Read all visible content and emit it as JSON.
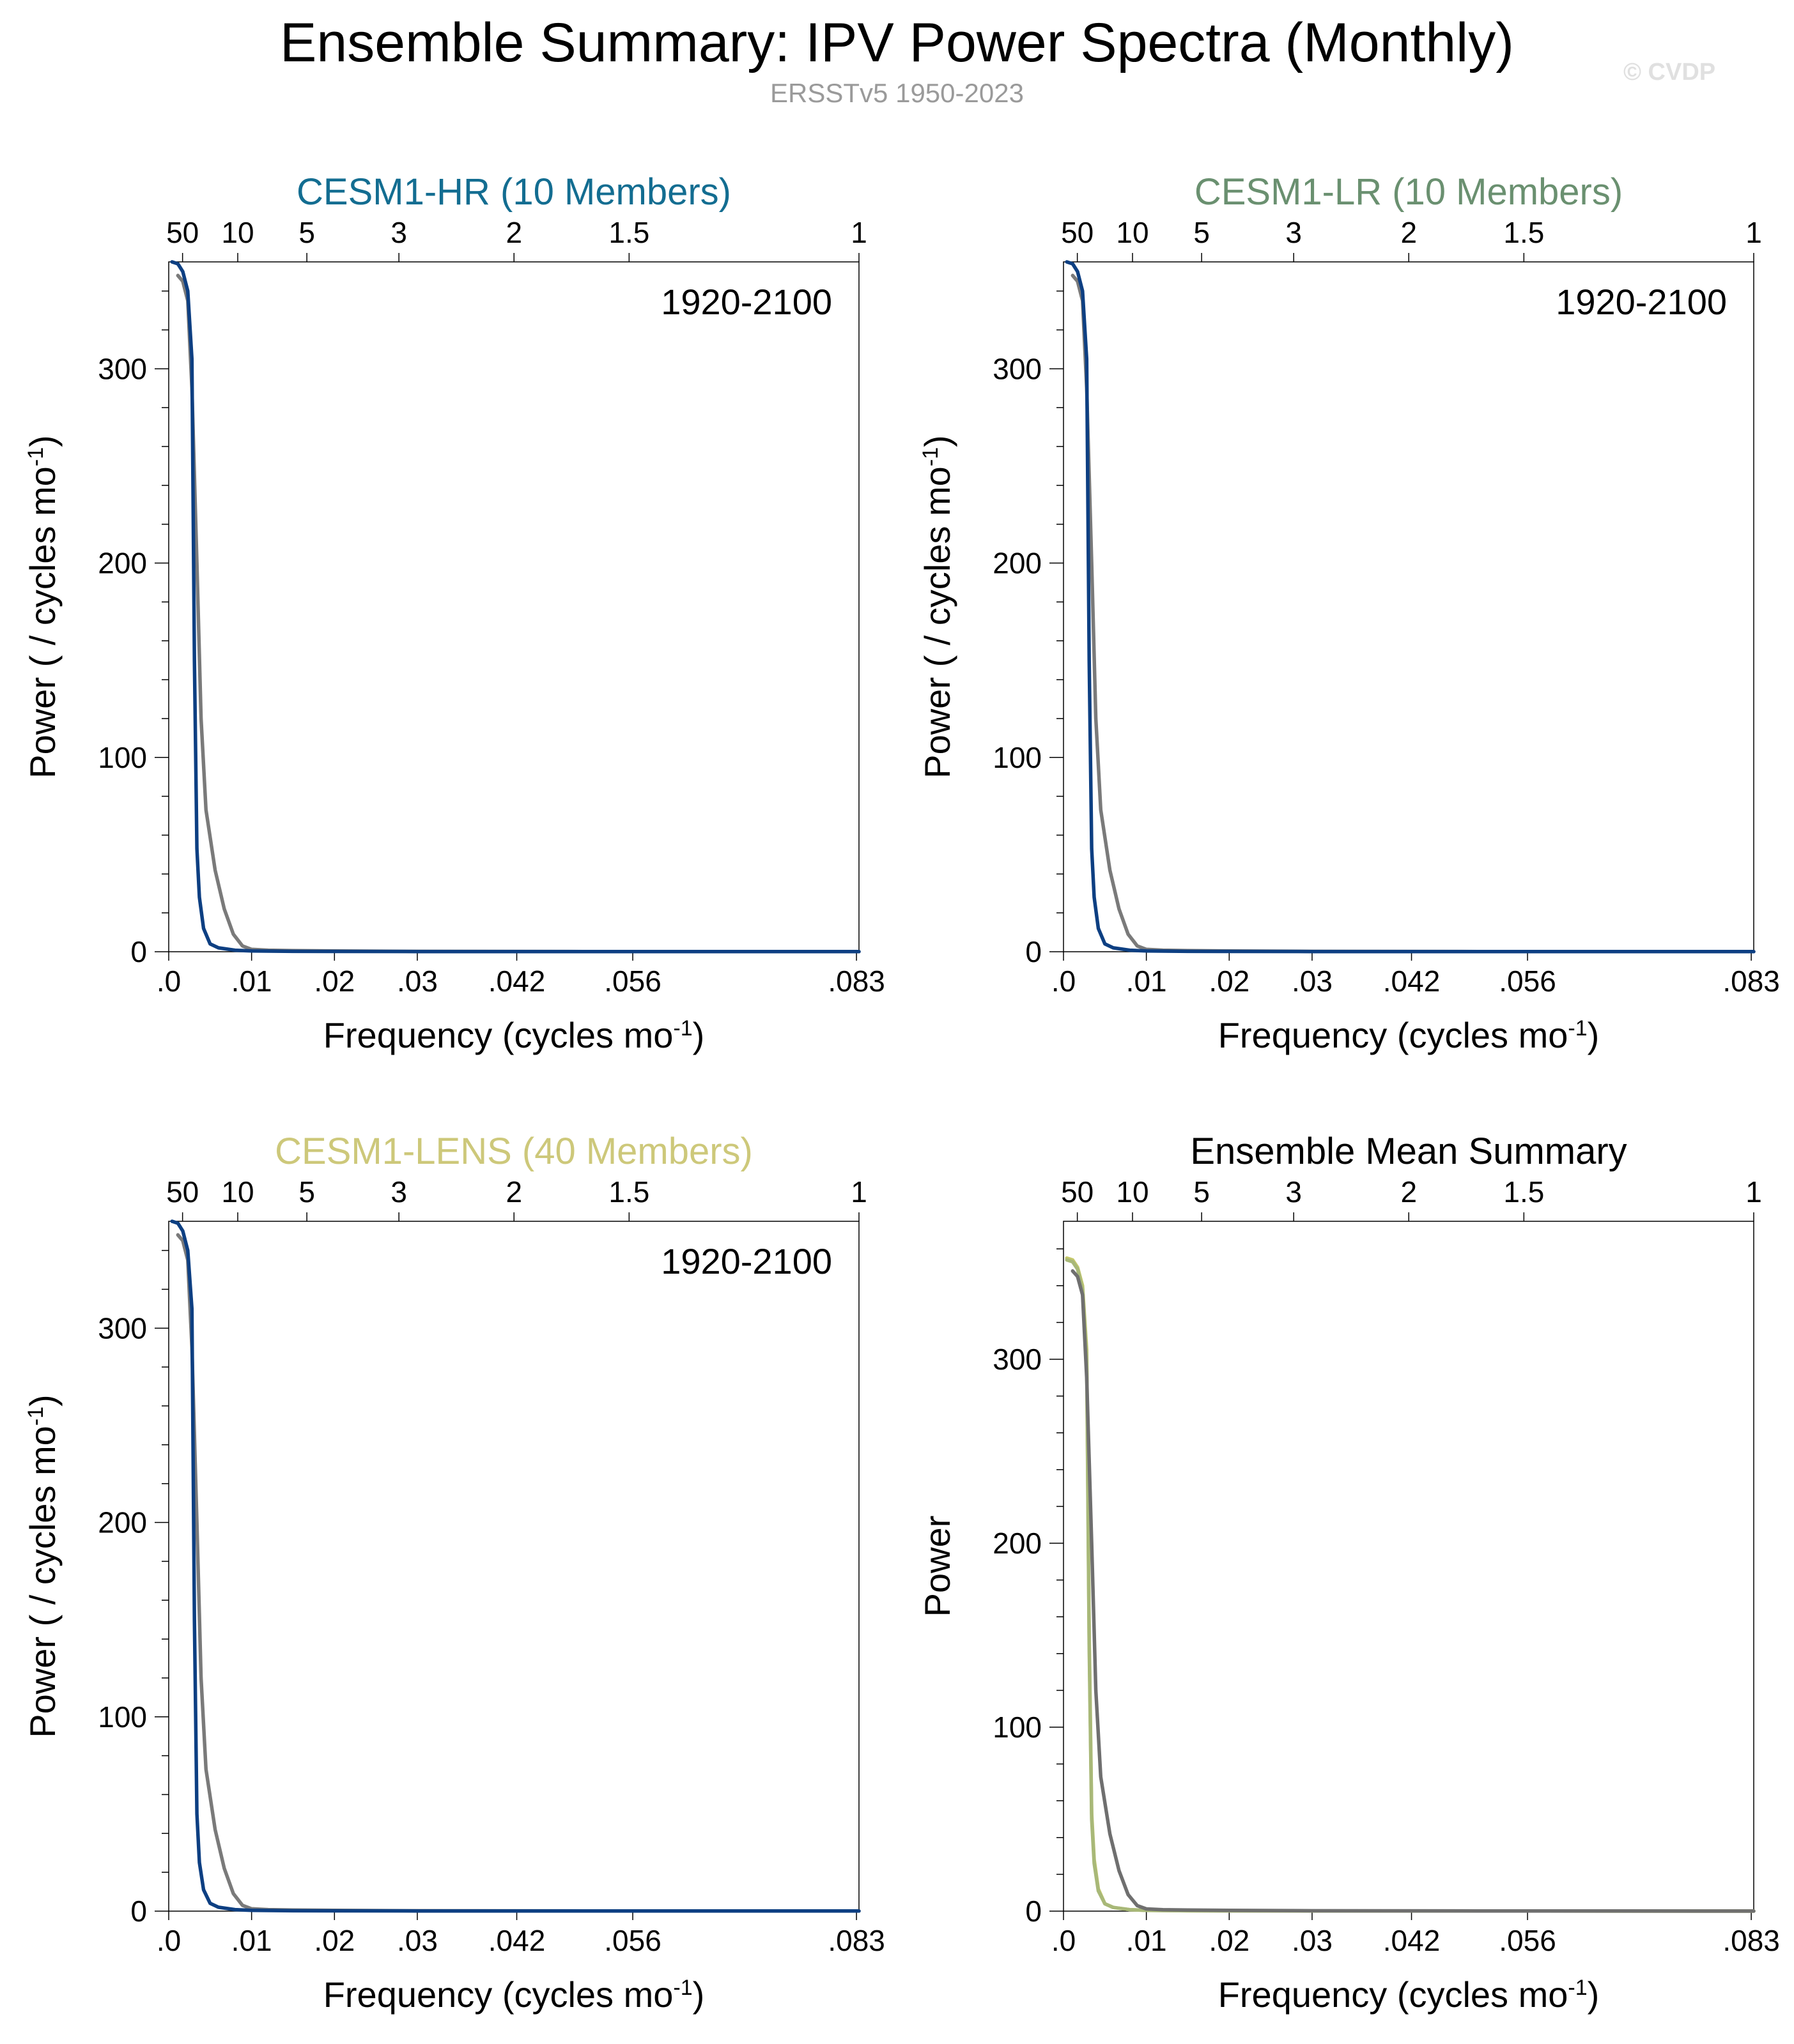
{
  "title": "Ensemble Summary: IPV Power Spectra (Monthly)",
  "subtitle": "ERSSTv5 1950-2023",
  "watermark": "© CVDP",
  "colors": {
    "hr": "#136d91",
    "lr": "#6a9070",
    "lens": "#cdc87a",
    "ensemble_line": "#0d3f82",
    "observed_line": "#7a7a7a",
    "summary_lens_line": "#c4c86a"
  },
  "chart_data": [
    {
      "type": "line",
      "title": "CESM1-HR (10 Members)",
      "title_color": "#136d91",
      "annotation": "1920-2100",
      "xlabel": "Frequency (cycles mo",
      "xlabel_sup": "-1",
      "xlabel_end": ")",
      "ylabel": "Power ( / cycles mo",
      "ylabel_sup": "-1",
      "ylabel_end": ")",
      "xlim": [
        0,
        0.0833
      ],
      "ylim": [
        0,
        355
      ],
      "x_ticks": [
        0,
        0.01,
        0.02,
        0.03,
        0.042,
        0.056,
        0.083
      ],
      "x_tick_labels": [
        ".0",
        ".01",
        ".02",
        ".03",
        ".042",
        ".056",
        ".083"
      ],
      "y_ticks": [
        0,
        100,
        200,
        300
      ],
      "y_tick_labels": [
        "0",
        "100",
        "200",
        "300"
      ],
      "top_ticks": [
        0.00167,
        0.00833,
        0.01667,
        0.02778,
        0.04167,
        0.05556,
        0.0833
      ],
      "top_tick_labels": [
        "50",
        "10",
        "5",
        "3",
        "2",
        "1.5",
        "1"
      ],
      "grid": false,
      "series": [
        {
          "color": "#7a7a7a",
          "x": [
            0.0011,
            0.0017,
            0.0023,
            0.0028,
            0.0034,
            0.0039,
            0.0045,
            0.0056,
            0.0067,
            0.0078,
            0.0089,
            0.01,
            0.012,
            0.015,
            0.02,
            0.03,
            0.05,
            0.0833
          ],
          "y": [
            348,
            345,
            335,
            290,
            200,
            120,
            73,
            42,
            22,
            9,
            3,
            1.2,
            0.8,
            0.6,
            0.4,
            0.2,
            0.1,
            0.05
          ]
        },
        {
          "color": "#0d3f82",
          "x": [
            0.0004,
            0.0011,
            0.0017,
            0.0023,
            0.0028,
            0.0031,
            0.0034,
            0.0037,
            0.0042,
            0.005,
            0.006,
            0.008,
            0.01,
            0.015,
            0.03,
            0.0833
          ],
          "y": [
            355,
            354,
            350,
            340,
            305,
            150,
            53,
            28,
            12,
            4,
            2,
            0.8,
            0.4,
            0.2,
            0.1,
            0.05
          ]
        }
      ]
    },
    {
      "type": "line",
      "title": "CESM1-LR (10 Members)",
      "title_color": "#6a9070",
      "annotation": "1920-2100",
      "xlabel": "Frequency (cycles mo",
      "xlabel_sup": "-1",
      "xlabel_end": ")",
      "ylabel": "Power ( / cycles mo",
      "ylabel_sup": "-1",
      "ylabel_end": ")",
      "xlim": [
        0,
        0.0833
      ],
      "ylim": [
        0,
        355
      ],
      "x_ticks": [
        0,
        0.01,
        0.02,
        0.03,
        0.042,
        0.056,
        0.083
      ],
      "x_tick_labels": [
        ".0",
        ".01",
        ".02",
        ".03",
        ".042",
        ".056",
        ".083"
      ],
      "y_ticks": [
        0,
        100,
        200,
        300
      ],
      "y_tick_labels": [
        "0",
        "100",
        "200",
        "300"
      ],
      "top_ticks": [
        0.00167,
        0.00833,
        0.01667,
        0.02778,
        0.04167,
        0.05556,
        0.0833
      ],
      "top_tick_labels": [
        "50",
        "10",
        "5",
        "3",
        "2",
        "1.5",
        "1"
      ],
      "grid": false,
      "series": [
        {
          "color": "#7a7a7a",
          "x": [
            0.0011,
            0.0017,
            0.0023,
            0.0028,
            0.0034,
            0.0039,
            0.0045,
            0.0056,
            0.0067,
            0.0078,
            0.0089,
            0.01,
            0.012,
            0.015,
            0.02,
            0.03,
            0.05,
            0.0833
          ],
          "y": [
            348,
            345,
            335,
            290,
            200,
            120,
            73,
            42,
            22,
            9,
            3,
            1.2,
            0.8,
            0.6,
            0.4,
            0.2,
            0.1,
            0.05
          ]
        },
        {
          "color": "#0d3f82",
          "x": [
            0.0004,
            0.0011,
            0.0017,
            0.0023,
            0.0028,
            0.0031,
            0.0034,
            0.0037,
            0.0042,
            0.005,
            0.006,
            0.008,
            0.01,
            0.015,
            0.03,
            0.0833
          ],
          "y": [
            355,
            354,
            350,
            340,
            305,
            150,
            53,
            28,
            12,
            4,
            2,
            0.8,
            0.4,
            0.2,
            0.1,
            0.05
          ]
        }
      ]
    },
    {
      "type": "line",
      "title": "CESM1-LENS (40 Members)",
      "title_color": "#cdc87a",
      "annotation": "1920-2100",
      "xlabel": "Frequency (cycles mo",
      "xlabel_sup": "-1",
      "xlabel_end": ")",
      "ylabel": "Power ( / cycles mo",
      "ylabel_sup": "-1",
      "ylabel_end": ")",
      "xlim": [
        0,
        0.0833
      ],
      "ylim": [
        0,
        355
      ],
      "x_ticks": [
        0,
        0.01,
        0.02,
        0.03,
        0.042,
        0.056,
        0.083
      ],
      "x_tick_labels": [
        ".0",
        ".01",
        ".02",
        ".03",
        ".042",
        ".056",
        ".083"
      ],
      "y_ticks": [
        0,
        100,
        200,
        300
      ],
      "y_tick_labels": [
        "0",
        "100",
        "200",
        "300"
      ],
      "top_ticks": [
        0.00167,
        0.00833,
        0.01667,
        0.02778,
        0.04167,
        0.05556,
        0.0833
      ],
      "top_tick_labels": [
        "50",
        "10",
        "5",
        "3",
        "2",
        "1.5",
        "1"
      ],
      "grid": false,
      "series": [
        {
          "color": "#7a7a7a",
          "x": [
            0.0011,
            0.0017,
            0.0023,
            0.0028,
            0.0034,
            0.0039,
            0.0045,
            0.0056,
            0.0067,
            0.0078,
            0.0089,
            0.01,
            0.012,
            0.015,
            0.02,
            0.03,
            0.05,
            0.0833
          ],
          "y": [
            348,
            345,
            335,
            290,
            200,
            120,
            73,
            42,
            22,
            9,
            3,
            1.2,
            0.8,
            0.6,
            0.4,
            0.2,
            0.1,
            0.05
          ]
        },
        {
          "color": "#0d3f82",
          "x": [
            0.0004,
            0.0011,
            0.0017,
            0.0023,
            0.0028,
            0.0031,
            0.0034,
            0.0037,
            0.0042,
            0.005,
            0.006,
            0.008,
            0.01,
            0.015,
            0.03,
            0.0833
          ],
          "y": [
            355,
            354,
            350,
            340,
            310,
            150,
            50,
            25,
            11,
            4,
            2,
            0.8,
            0.4,
            0.2,
            0.1,
            0.05
          ]
        }
      ]
    },
    {
      "type": "line",
      "title": "Ensemble Mean Summary",
      "title_color": "#000000",
      "annotation": "",
      "xlabel": "Frequency (cycles mo",
      "xlabel_sup": "-1",
      "xlabel_end": ")",
      "ylabel": "Power",
      "ylabel_sup": "",
      "ylabel_end": "",
      "xlim": [
        0,
        0.0833
      ],
      "ylim": [
        0,
        375
      ],
      "x_ticks": [
        0,
        0.01,
        0.02,
        0.03,
        0.042,
        0.056,
        0.083
      ],
      "x_tick_labels": [
        ".0",
        ".01",
        ".02",
        ".03",
        ".042",
        ".056",
        ".083"
      ],
      "y_ticks": [
        0,
        100,
        200,
        300
      ],
      "y_tick_labels": [
        "0",
        "100",
        "200",
        "300"
      ],
      "top_ticks": [
        0.00167,
        0.00833,
        0.01667,
        0.02778,
        0.04167,
        0.05556,
        0.0833
      ],
      "top_tick_labels": [
        "50",
        "10",
        "5",
        "3",
        "2",
        "1.5",
        "1"
      ],
      "grid": false,
      "series": [
        {
          "color": "#c4c86a",
          "x": [
            0.0004,
            0.0011,
            0.0017,
            0.0023,
            0.0028,
            0.0031,
            0.0034,
            0.0037,
            0.0042,
            0.005,
            0.006,
            0.008,
            0.01,
            0.015,
            0.03,
            0.0833
          ],
          "y": [
            355,
            354,
            350,
            340,
            305,
            150,
            53,
            28,
            12,
            4,
            2,
            0.8,
            0.4,
            0.2,
            0.1,
            0.05
          ]
        },
        {
          "color": "#a8b878",
          "x": [
            0.0004,
            0.0011,
            0.0017,
            0.0023,
            0.0028,
            0.0031,
            0.0034,
            0.0037,
            0.0042,
            0.005,
            0.006,
            0.008,
            0.01,
            0.015,
            0.03,
            0.0833
          ],
          "y": [
            354,
            353,
            349,
            338,
            300,
            145,
            50,
            26,
            11,
            4,
            2,
            0.8,
            0.4,
            0.2,
            0.1,
            0.05
          ]
        },
        {
          "color": "#6f6f6f",
          "x": [
            0.0011,
            0.0017,
            0.0023,
            0.0028,
            0.0034,
            0.0039,
            0.0045,
            0.0056,
            0.0067,
            0.0078,
            0.0089,
            0.01,
            0.012,
            0.015,
            0.02,
            0.03,
            0.05,
            0.0833
          ],
          "y": [
            348,
            345,
            335,
            290,
            200,
            120,
            73,
            42,
            22,
            9,
            3,
            1.2,
            0.8,
            0.6,
            0.4,
            0.2,
            0.1,
            0.05
          ]
        }
      ]
    }
  ]
}
